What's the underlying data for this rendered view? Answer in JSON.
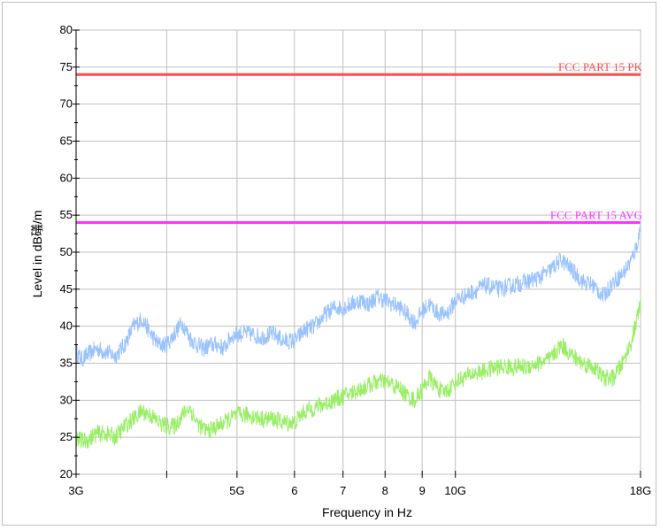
{
  "chart_data": {
    "type": "line",
    "title": "",
    "xlabel": "Frequency in Hz",
    "ylabel": "Level in dB礒/m",
    "x_scale": "log",
    "xlim_hz": [
      3000000000,
      18000000000
    ],
    "ylim": [
      20,
      80
    ],
    "y_ticks": [
      20,
      25,
      30,
      35,
      40,
      45,
      50,
      55,
      60,
      65,
      70,
      75,
      80
    ],
    "x_ticks": [
      {
        "hz": 3000000000,
        "label": "3G"
      },
      {
        "hz": 4000000000,
        "label": ""
      },
      {
        "hz": 5000000000,
        "label": "5G"
      },
      {
        "hz": 6000000000,
        "label": "6"
      },
      {
        "hz": 7000000000,
        "label": "7"
      },
      {
        "hz": 8000000000,
        "label": "8"
      },
      {
        "hz": 9000000000,
        "label": "9"
      },
      {
        "hz": 10000000000,
        "label": "10G"
      },
      {
        "hz": 18000000000,
        "label": "18G"
      }
    ],
    "grid": true,
    "limit_lines": [
      {
        "name": "FCC PART 15  PK",
        "value": 74,
        "color": "#ff4d4d"
      },
      {
        "name": "FCC PART 15 AVG",
        "value": 54,
        "color": "#ff33ff"
      }
    ],
    "series": [
      {
        "color": "#99c2ff",
        "x_ghz": [
          3.0,
          3.05,
          3.1,
          3.2,
          3.3,
          3.4,
          3.5,
          3.6,
          3.7,
          3.8,
          3.9,
          4.0,
          4.1,
          4.2,
          4.3,
          4.4,
          4.5,
          4.6,
          4.7,
          4.8,
          4.9,
          5.0,
          5.2,
          5.4,
          5.6,
          5.8,
          6.0,
          6.2,
          6.4,
          6.6,
          6.8,
          7.0,
          7.2,
          7.4,
          7.6,
          7.8,
          8.0,
          8.2,
          8.4,
          8.6,
          8.8,
          9.0,
          9.2,
          9.4,
          9.6,
          9.8,
          10.0,
          10.5,
          11.0,
          11.5,
          12.0,
          12.5,
          13.0,
          13.5,
          14.0,
          14.5,
          15.0,
          15.5,
          16.0,
          16.5,
          17.0,
          17.5,
          17.8,
          18.0
        ],
        "y": [
          36.5,
          35.5,
          36,
          37,
          36.5,
          36,
          37.5,
          40,
          41,
          39,
          37.5,
          37.5,
          39,
          40.5,
          38.5,
          37.5,
          37,
          37.5,
          37.5,
          37,
          38.5,
          39,
          39,
          38.5,
          39,
          38,
          38,
          39.5,
          40,
          41.5,
          42.5,
          42.5,
          43,
          43.5,
          43,
          44,
          43.5,
          43,
          42.5,
          41.5,
          40.5,
          42,
          43,
          42,
          41.5,
          42,
          43.5,
          44.5,
          45.5,
          45,
          45.5,
          46,
          46.5,
          47.5,
          49,
          47.5,
          46,
          45.5,
          44,
          46,
          47,
          49,
          51,
          53.5
        ]
      },
      {
        "color": "#99ee66",
        "x_ghz": [
          3.0,
          3.05,
          3.1,
          3.2,
          3.3,
          3.4,
          3.5,
          3.6,
          3.7,
          3.8,
          3.9,
          4.0,
          4.1,
          4.2,
          4.3,
          4.4,
          4.5,
          4.6,
          4.7,
          4.8,
          4.9,
          5.0,
          5.2,
          5.4,
          5.6,
          5.8,
          6.0,
          6.2,
          6.4,
          6.6,
          6.8,
          7.0,
          7.2,
          7.4,
          7.6,
          7.8,
          8.0,
          8.2,
          8.4,
          8.6,
          8.8,
          9.0,
          9.2,
          9.4,
          9.6,
          9.8,
          10.0,
          10.5,
          11.0,
          11.5,
          12.0,
          12.5,
          13.0,
          13.5,
          14.0,
          14.5,
          15.0,
          15.5,
          16.0,
          16.5,
          17.0,
          17.5,
          17.8,
          18.0
        ],
        "y": [
          25,
          24.5,
          24.5,
          25.5,
          25.5,
          25,
          26.5,
          27.5,
          28.5,
          28,
          27,
          26.5,
          26.5,
          28,
          29,
          27,
          26,
          26,
          26.5,
          27,
          27.5,
          28,
          28,
          27.5,
          27.5,
          27,
          27,
          28.5,
          29,
          29.5,
          30,
          30.5,
          31,
          31.5,
          32,
          32.5,
          32.5,
          32,
          31.5,
          30.5,
          30,
          31.5,
          33,
          32,
          31,
          31.5,
          32.5,
          33.5,
          34,
          34.5,
          34.5,
          34.5,
          35,
          35.5,
          37.5,
          36,
          35,
          34.5,
          33,
          33,
          35,
          38,
          41,
          43
        ]
      }
    ]
  }
}
